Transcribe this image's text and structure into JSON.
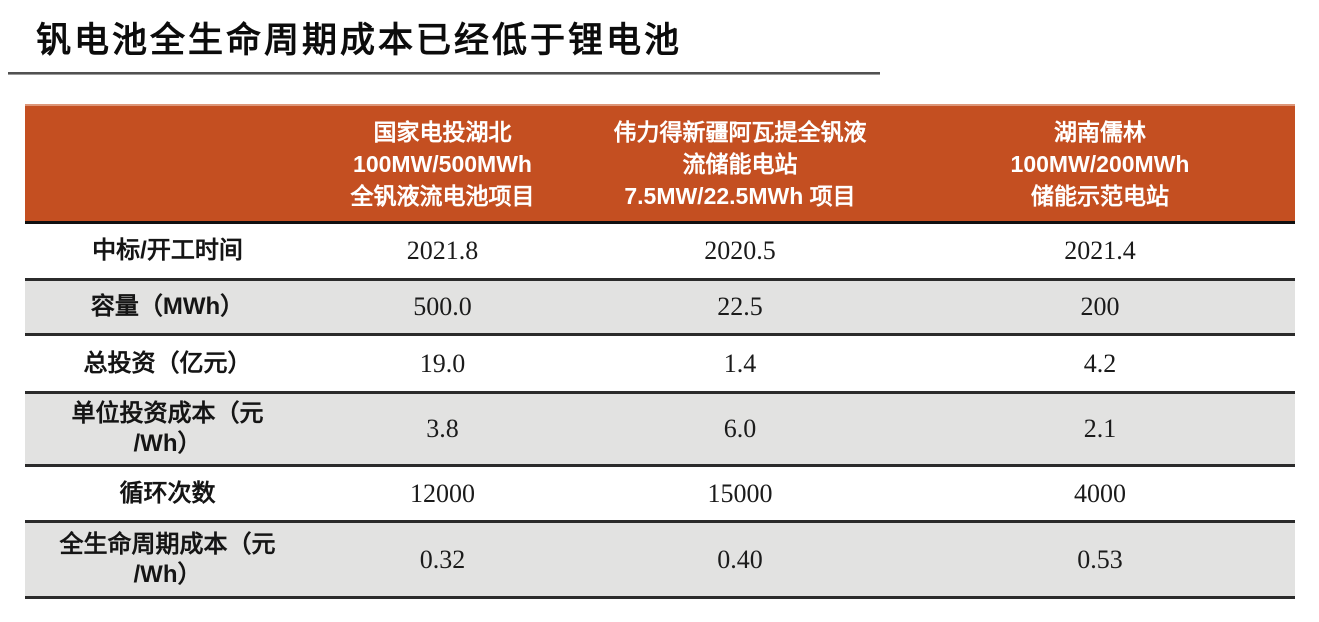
{
  "page": {
    "title": "钒电池全生命周期成本已经低于锂电池"
  },
  "colors": {
    "header_bg": "#C44F21",
    "header_text": "#FFFFFF",
    "stripe_bg": "#E2E2E1",
    "row_border": "#2B2B2B",
    "title_text": "#0C0C0C",
    "title_underline": "#515151"
  },
  "chart_data": {
    "type": "table",
    "title": "钒电池全生命周期成本已经低于锂电池",
    "legend_position": "none",
    "grid": "horizontal-stripe-borders",
    "column_headers": [
      {
        "lines": [
          "国家电投湖北",
          "100MW/500MWh",
          "全钒液流电池项目"
        ]
      },
      {
        "lines": [
          "伟力得新疆阿瓦提全钒液",
          "流储能电站",
          "7.5MW/22.5MWh 项目"
        ]
      },
      {
        "lines": [
          "湖南儒林",
          "100MW/200MWh",
          "储能示范电站"
        ]
      }
    ],
    "rows": [
      {
        "label_lines": [
          "中标/开工时间"
        ],
        "values": [
          "2021.8",
          "2020.5",
          "2021.4"
        ]
      },
      {
        "label_lines": [
          "容量（MWh）"
        ],
        "values": [
          "500.0",
          "22.5",
          "200"
        ]
      },
      {
        "label_lines": [
          "总投资（亿元）"
        ],
        "values": [
          "19.0",
          "1.4",
          "4.2"
        ]
      },
      {
        "label_lines": [
          "单位投资成本（元",
          "/Wh）"
        ],
        "values": [
          "3.8",
          "6.0",
          "2.1"
        ]
      },
      {
        "label_lines": [
          "循环次数"
        ],
        "values": [
          "12000",
          "15000",
          "4000"
        ]
      },
      {
        "label_lines": [
          "全生命周期成本（元",
          "/Wh）"
        ],
        "values": [
          "0.32",
          "0.40",
          "0.53"
        ]
      }
    ]
  }
}
